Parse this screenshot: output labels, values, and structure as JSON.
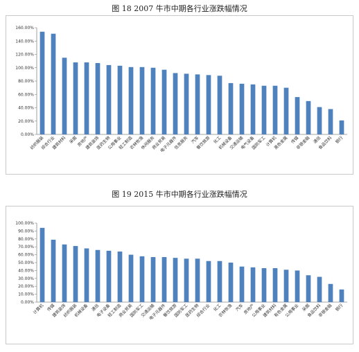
{
  "figures": [
    {
      "title": "图 18    2007 牛市中期各行业涨跌幅情况"
    },
    {
      "title": "图 19    2015 牛市中期各行业涨跌幅情况"
    }
  ],
  "chart_data": [
    {
      "type": "bar",
      "title": "图 18    2007 牛市中期各行业涨跌幅情况",
      "ylim": [
        0,
        160
      ],
      "yticks": [
        "0.00%",
        "20.00%",
        "40.00%",
        "60.00%",
        "80.00%",
        "100.00%",
        "120.00%",
        "140.00%",
        "160.00%"
      ],
      "grid": false,
      "bar_color": "#4f81bd",
      "categories": [
        "纺织服装",
        "综合行业",
        "建筑材料",
        "采掘",
        "房地产",
        "建筑装饰",
        "医药生物",
        "公用事业",
        "轻工制造",
        "农林牧渔",
        "休闲服务",
        "商业贸易",
        "电子元器件",
        "信息服务",
        "汽车",
        "餐饮旅游",
        "化工",
        "机械设备",
        "交通运输",
        "电气设备",
        "国防军工",
        "计算机",
        "黑色金属",
        "传媒",
        "非银金融",
        "通信",
        "食品饮料",
        "银行"
      ],
      "values": [
        154,
        151,
        115,
        108,
        108,
        107,
        104,
        103,
        101,
        101,
        100,
        97,
        92,
        91,
        90,
        89,
        88,
        77,
        76,
        75,
        73,
        73,
        70,
        56,
        50,
        41,
        38,
        21
      ]
    },
    {
      "type": "bar",
      "title": "图 19    2015 牛市中期各行业涨跌幅情况",
      "ylim": [
        0,
        100
      ],
      "yticks": [
        "0.00%",
        "10.00%",
        "20.00%",
        "30.00%",
        "40.00%",
        "50.00%",
        "60.00%",
        "70.00%",
        "80.00%",
        "90.00%",
        "100.00%"
      ],
      "grid": false,
      "bar_color": "#4f81bd",
      "categories": [
        "计算机",
        "传媒",
        "建筑装饰",
        "纺织服装",
        "机械设备",
        "通信",
        "电子设备",
        "轻工制造",
        "商业贸易",
        "国防军工",
        "交通运输",
        "电子元器件",
        "餐饮旅游",
        "国防军工",
        "医药生物",
        "综合行业",
        "化工",
        "农林牧渔",
        "汽车",
        "房地产",
        "公用事业",
        "建筑材料",
        "有色金属",
        "公用事业",
        "采掘",
        "食品饮料",
        "非银金融",
        "银行"
      ],
      "values": [
        94,
        79,
        73,
        71,
        68,
        66,
        65,
        64,
        60,
        58,
        57,
        57,
        56,
        55,
        55,
        52,
        52,
        50,
        45,
        44,
        43,
        43,
        41,
        40,
        34,
        32,
        23,
        16
      ]
    }
  ]
}
